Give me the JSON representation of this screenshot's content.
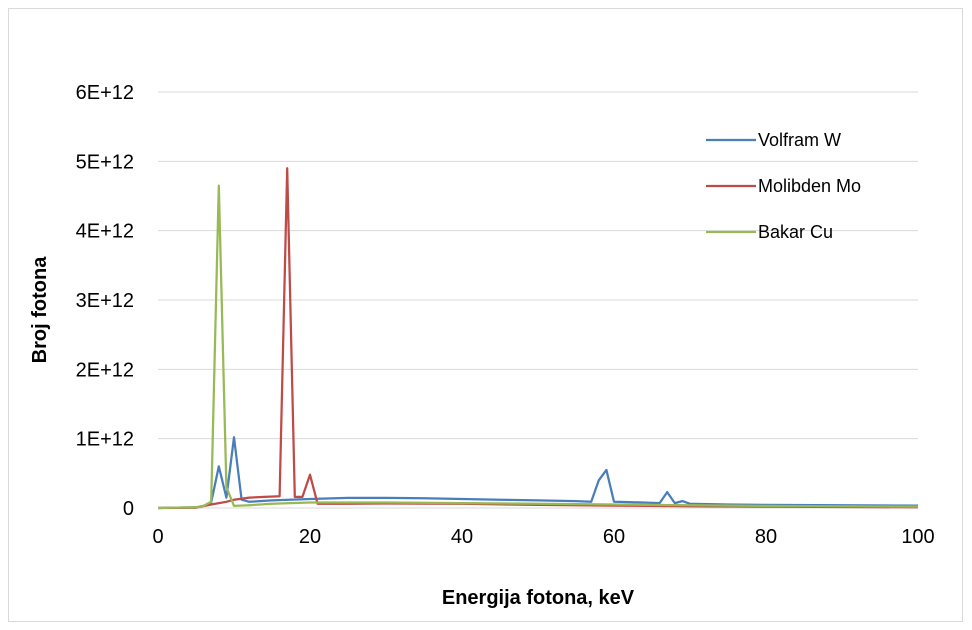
{
  "chart_data": {
    "type": "line",
    "title": "",
    "xlabel": "Energija fotona, keV",
    "ylabel": "Broj fotona",
    "xlim": [
      0,
      100
    ],
    "ylim": [
      0,
      6000000000000.0
    ],
    "x_ticks": [
      0,
      20,
      40,
      60,
      80,
      100
    ],
    "x_tick_labels": [
      "0",
      "20",
      "40",
      "60",
      "80",
      "100"
    ],
    "y_ticks": [
      0,
      1000000000000.0,
      2000000000000.0,
      3000000000000.0,
      4000000000000.0,
      5000000000000.0,
      6000000000000.0
    ],
    "y_tick_labels": [
      "0",
      "1E+12",
      "2E+12",
      "3E+12",
      "4E+12",
      "5E+12",
      "6E+12"
    ],
    "grid": true,
    "legend_position": "right",
    "series": [
      {
        "name": "Volfram W",
        "color": "#4a7ebb",
        "x": [
          0,
          5,
          6,
          7,
          8,
          9,
          10,
          11,
          12,
          15,
          20,
          25,
          30,
          35,
          40,
          45,
          50,
          55,
          57,
          58,
          59,
          60,
          62,
          66,
          67,
          68,
          69,
          70,
          75,
          80,
          90,
          100
        ],
        "y": [
          0,
          10000000000.0,
          30000000000.0,
          80000000000.0,
          600000000000.0,
          150000000000.0,
          1020000000000.0,
          120000000000.0,
          90000000000.0,
          110000000000.0,
          130000000000.0,
          145000000000.0,
          145000000000.0,
          140000000000.0,
          130000000000.0,
          120000000000.0,
          110000000000.0,
          100000000000.0,
          90000000000.0,
          400000000000.0,
          550000000000.0,
          90000000000.0,
          85000000000.0,
          70000000000.0,
          230000000000.0,
          70000000000.0,
          100000000000.0,
          60000000000.0,
          50000000000.0,
          45000000000.0,
          40000000000.0,
          35000000000.0
        ]
      },
      {
        "name": "Molibden Mo",
        "color": "#be4b48",
        "x": [
          0,
          5,
          7,
          9,
          10,
          12,
          14,
          16,
          17,
          18,
          19,
          20,
          21,
          25,
          30,
          40,
          50,
          60,
          70,
          80,
          90,
          100
        ],
        "y": [
          0,
          5000000000.0,
          50000000000.0,
          90000000000.0,
          120000000000.0,
          150000000000.0,
          160000000000.0,
          170000000000.0,
          4900000000000.0,
          160000000000.0,
          160000000000.0,
          480000000000.0,
          60000000000.0,
          60000000000.0,
          65000000000.0,
          60000000000.0,
          45000000000.0,
          35000000000.0,
          25000000000.0,
          20000000000.0,
          15000000000.0,
          10000000000.0
        ]
      },
      {
        "name": "Bakar Cu",
        "color": "#98b954",
        "x": [
          0,
          5,
          6,
          7,
          8,
          9,
          10,
          12,
          15,
          20,
          25,
          30,
          40,
          50,
          60,
          70,
          80,
          90,
          100
        ],
        "y": [
          0,
          10000000000.0,
          30000000000.0,
          90000000000.0,
          4650000000000.0,
          300000000000.0,
          30000000000.0,
          40000000000.0,
          60000000000.0,
          80000000000.0,
          80000000000.0,
          80000000000.0,
          70000000000.0,
          60000000000.0,
          50000000000.0,
          40000000000.0,
          30000000000.0,
          25000000000.0,
          20000000000.0
        ]
      }
    ]
  }
}
